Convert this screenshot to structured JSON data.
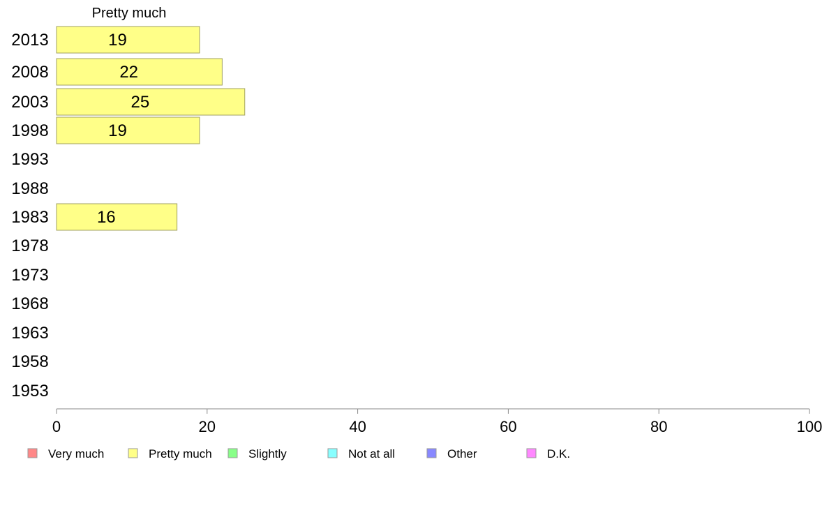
{
  "chart_data": {
    "type": "bar",
    "orientation": "horizontal",
    "series_title": "Pretty much",
    "categories": [
      "2013",
      "2008",
      "2003",
      "1998",
      "1993",
      "1988",
      "1983",
      "1978",
      "1973",
      "1968",
      "1963",
      "1958",
      "1953"
    ],
    "series": [
      {
        "name": "Pretty much",
        "color": "#ffff88",
        "values": [
          19,
          22,
          25,
          19,
          null,
          null,
          16,
          null,
          null,
          null,
          null,
          null,
          null
        ]
      }
    ],
    "xlim": [
      0,
      100
    ],
    "xticks": [
      0,
      20,
      40,
      60,
      80,
      100
    ],
    "grid": false,
    "legend_position": "bottom",
    "legend": [
      {
        "label": "Very much",
        "color": "#ff8888"
      },
      {
        "label": "Pretty much",
        "color": "#ffff88"
      },
      {
        "label": "Slightly",
        "color": "#88ff88"
      },
      {
        "label": "Not at all",
        "color": "#88ffff"
      },
      {
        "label": "Other",
        "color": "#8888ff"
      },
      {
        "label": "D.K.",
        "color": "#ff88ff"
      }
    ]
  }
}
